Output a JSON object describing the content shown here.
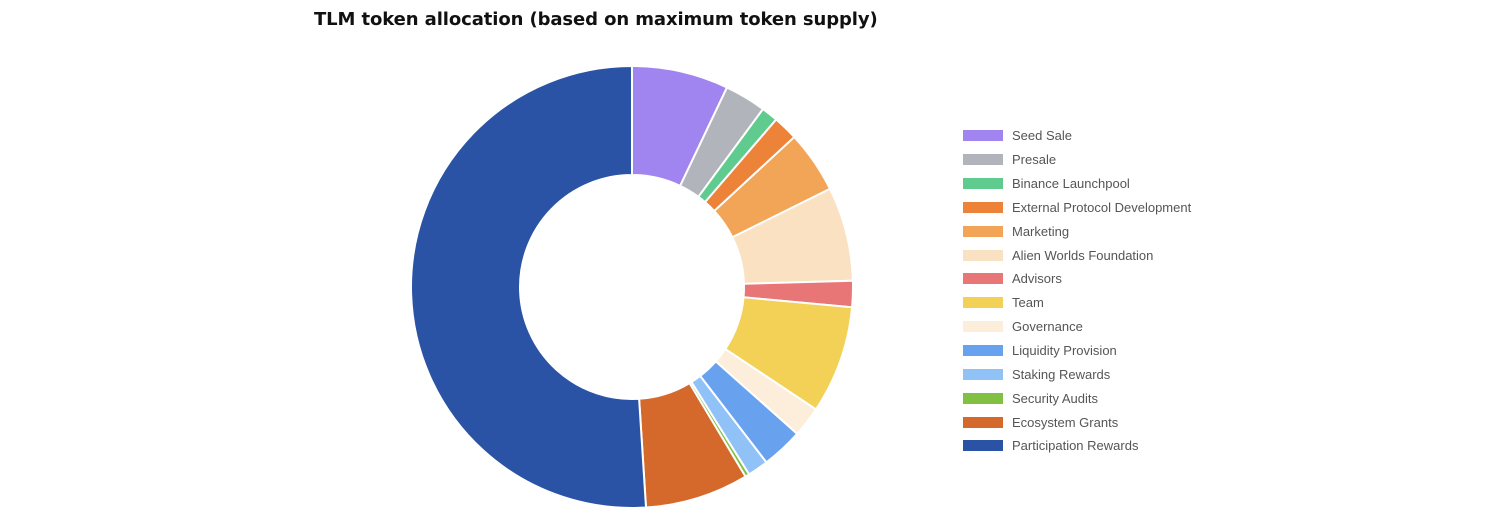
{
  "chart_data": {
    "type": "pie",
    "variant": "donut",
    "title": "TLM token allocation (based on maximum token supply)",
    "legend_position": "right",
    "categories": [
      "Seed Sale",
      "Presale",
      "Binance Launchpool",
      "External Protocol Development",
      "Marketing",
      "Alien Worlds Foundation",
      "Advisors",
      "Team",
      "Governance",
      "Liquidity Provision",
      "Staking Rewards",
      "Security Audits",
      "Ecosystem Grants",
      "Participation Rewards"
    ],
    "values": [
      7,
      3,
      1.2,
      1.8,
      4.5,
      6.8,
      1.9,
      7.8,
      2.2,
      3.0,
      1.5,
      0.3,
      7.5,
      50.5
    ],
    "colors": [
      "#a084f0",
      "#b1b5bb",
      "#5fcb8e",
      "#ec8339",
      "#f2a556",
      "#fae1c1",
      "#e97676",
      "#f3d157",
      "#fdeedb",
      "#68a2ef",
      "#90c2f8",
      "#82c043",
      "#d5692c",
      "#2a53a5"
    ]
  }
}
